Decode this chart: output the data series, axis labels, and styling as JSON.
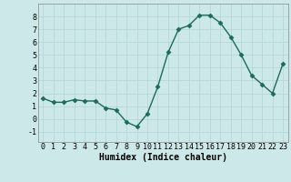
{
  "x": [
    0,
    1,
    2,
    3,
    4,
    5,
    6,
    7,
    8,
    9,
    10,
    11,
    12,
    13,
    14,
    15,
    16,
    17,
    18,
    19,
    20,
    21,
    22,
    23
  ],
  "y": [
    1.6,
    1.3,
    1.3,
    1.5,
    1.4,
    1.4,
    0.85,
    0.7,
    -0.25,
    -0.6,
    0.4,
    2.5,
    5.2,
    7.0,
    7.3,
    8.1,
    8.1,
    7.5,
    6.4,
    5.0,
    3.4,
    2.7,
    2.0,
    4.3
  ],
  "line_color": "#1a6b5a",
  "marker": "D",
  "markersize": 2.5,
  "linewidth": 1.0,
  "xlabel": "Humidex (Indice chaleur)",
  "xlim": [
    -0.5,
    23.5
  ],
  "ylim": [
    -1.8,
    9.0
  ],
  "yticks": [
    -1,
    0,
    1,
    2,
    3,
    4,
    5,
    6,
    7,
    8
  ],
  "xticks": [
    0,
    1,
    2,
    3,
    4,
    5,
    6,
    7,
    8,
    9,
    10,
    11,
    12,
    13,
    14,
    15,
    16,
    17,
    18,
    19,
    20,
    21,
    22,
    23
  ],
  "background_color": "#cce8e8",
  "grid_color": "#b0d4d4",
  "xlabel_fontsize": 7.0,
  "tick_fontsize": 6.0
}
